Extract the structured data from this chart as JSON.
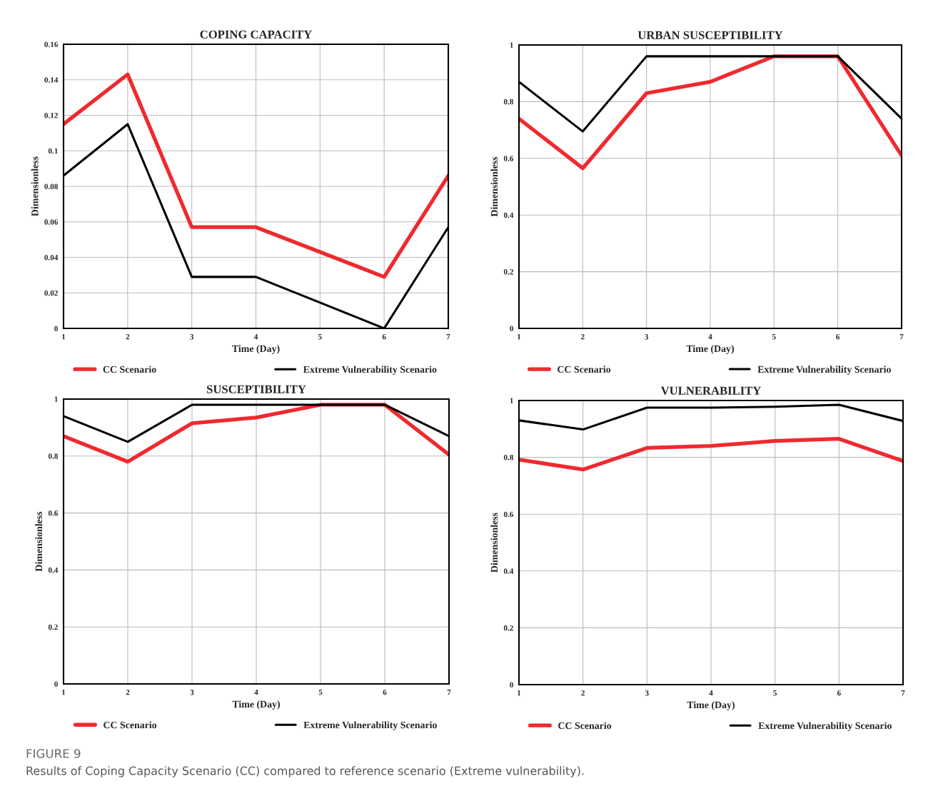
{
  "chart_data": [
    {
      "type": "line",
      "title": "COPING CAPACITY",
      "xlabel": "Time (Day)",
      "ylabel": "Dimensionless",
      "x": [
        1,
        2,
        3,
        4,
        5,
        6,
        7
      ],
      "xlim": [
        1,
        7
      ],
      "xticks": [
        1,
        2,
        3,
        4,
        5,
        6,
        7
      ],
      "ylim": [
        0,
        0.16
      ],
      "yticks": [
        0,
        0.02,
        0.04,
        0.06,
        0.08,
        0.1,
        0.12,
        0.14,
        0.16
      ],
      "grid": true,
      "legend": "bottom",
      "series": [
        {
          "name": "CC Scenario",
          "color": "#ee2a2f",
          "values": [
            0.115,
            0.143,
            0.057,
            0.057,
            0.043,
            0.029,
            0.086
          ]
        },
        {
          "name": "Extreme Vulnerability Scenario",
          "color": "#000000",
          "values": [
            0.086,
            0.115,
            0.029,
            0.029,
            0.0145,
            0,
            0.057
          ]
        }
      ]
    },
    {
      "type": "line",
      "title": "URBAN SUSCEPTIBILITY",
      "xlabel": "Time (Day)",
      "ylabel": "Dimensionless",
      "x": [
        1,
        2,
        3,
        4,
        5,
        6,
        7
      ],
      "xlim": [
        1,
        7
      ],
      "xticks": [
        1,
        2,
        3,
        4,
        5,
        6,
        7
      ],
      "ylim": [
        0,
        1
      ],
      "yticks": [
        0,
        0.2,
        0.4,
        0.6,
        0.8,
        1
      ],
      "grid": true,
      "legend": "bottom",
      "series": [
        {
          "name": "CC Scenario",
          "color": "#ee2a2f",
          "values": [
            0.74,
            0.565,
            0.83,
            0.87,
            0.96,
            0.96,
            0.61
          ]
        },
        {
          "name": "Extreme Vulnerability Scenario",
          "color": "#000000",
          "values": [
            0.87,
            0.695,
            0.96,
            0.96,
            0.96,
            0.96,
            0.74
          ]
        }
      ]
    },
    {
      "type": "line",
      "title": "SUSCEPTIBILITY",
      "xlabel": "Time (Day)",
      "ylabel": "Dimensionless",
      "x": [
        1,
        2,
        3,
        4,
        5,
        6,
        7
      ],
      "xlim": [
        1,
        7
      ],
      "xticks": [
        1,
        2,
        3,
        4,
        5,
        6,
        7
      ],
      "ylim": [
        0,
        1
      ],
      "yticks": [
        0,
        0.2,
        0.4,
        0.6,
        0.8,
        1
      ],
      "grid": true,
      "legend": "bottom",
      "series": [
        {
          "name": "CC Scenario",
          "color": "#ee2a2f",
          "values": [
            0.87,
            0.78,
            0.915,
            0.935,
            0.98,
            0.98,
            0.805
          ]
        },
        {
          "name": "Extreme Vulnerability Scenario",
          "color": "#000000",
          "values": [
            0.94,
            0.85,
            0.98,
            0.98,
            0.98,
            0.98,
            0.87
          ]
        }
      ]
    },
    {
      "type": "line",
      "title": "VULNERABILITY",
      "xlabel": "Time (Day)",
      "ylabel": "Dimensionless",
      "x": [
        1,
        2,
        3,
        4,
        5,
        6,
        7
      ],
      "xlim": [
        1,
        7
      ],
      "xticks": [
        1,
        2,
        3,
        4,
        5,
        6,
        7
      ],
      "ylim": [
        0,
        1
      ],
      "yticks": [
        0,
        0.2,
        0.4,
        0.6,
        0.8,
        1
      ],
      "grid": true,
      "legend": "bottom",
      "annotations": [
        "FIGURE 9",
        "Results of Coping Capacity Scenario (CC) compared to reference scenario (Extreme vulnerability)."
      ],
      "series": [
        {
          "name": "CC Scenario",
          "color": "#ee2a2f",
          "values": [
            0.792,
            0.757,
            0.833,
            0.84,
            0.858,
            0.865,
            0.787
          ]
        },
        {
          "name": "Extreme Vulnerability Scenario",
          "color": "#000000",
          "values": [
            0.93,
            0.898,
            0.975,
            0.975,
            0.978,
            0.985,
            0.928
          ]
        }
      ]
    }
  ]
}
